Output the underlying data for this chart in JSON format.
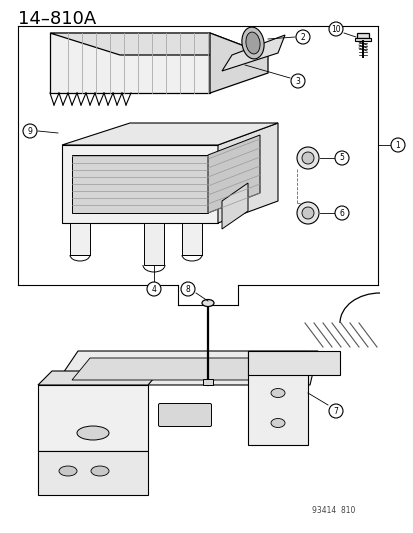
{
  "title": "14–810A",
  "catalog_number": "93414  810",
  "bg_color": "#ffffff",
  "line_color": "#000000",
  "fig_width": 4.14,
  "fig_height": 5.33,
  "dpi": 100,
  "title_fontsize": 13,
  "part_numbers": [
    1,
    2,
    3,
    4,
    5,
    6,
    7,
    8,
    9,
    10
  ]
}
